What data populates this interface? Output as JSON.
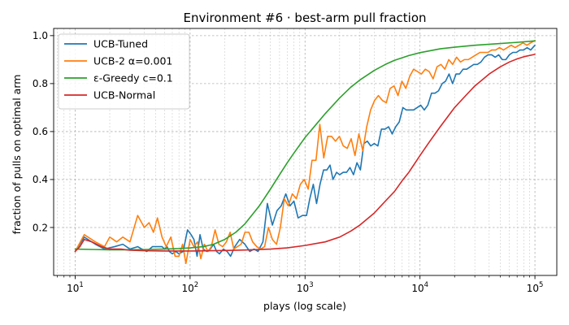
{
  "chart_data": {
    "type": "line",
    "title": "Environment #6 · best-arm pull fraction",
    "xlabel": "plays (log scale)",
    "ylabel": "fraction of pulls on optimal arm",
    "xscale": "log",
    "xlim": [
      6.5,
      155000
    ],
    "ylim": [
      0.0,
      1.03
    ],
    "x_ticks": [
      10,
      100,
      1000,
      10000,
      100000
    ],
    "x_tick_labels": [
      {
        "base": "10",
        "exp": "1"
      },
      {
        "base": "10",
        "exp": "2"
      },
      {
        "base": "10",
        "exp": "3"
      },
      {
        "base": "10",
        "exp": "4"
      },
      {
        "base": "10",
        "exp": "5"
      }
    ],
    "y_ticks": [
      0.2,
      0.4,
      0.6,
      0.8,
      1.0
    ],
    "y_tick_labels": [
      "0.2",
      "0.4",
      "0.6",
      "0.8",
      "1.0"
    ],
    "grid": true,
    "legend": "top-left",
    "series": [
      {
        "name": "UCB-Tuned",
        "color": "#1f77b4",
        "points": [
          [
            10,
            0.1
          ],
          [
            12,
            0.16
          ],
          [
            15,
            0.13
          ],
          [
            18,
            0.11
          ],
          [
            22,
            0.12
          ],
          [
            26,
            0.13
          ],
          [
            30,
            0.11
          ],
          [
            35,
            0.12
          ],
          [
            38,
            0.11
          ],
          [
            42,
            0.1
          ],
          [
            47,
            0.12
          ],
          [
            52,
            0.12
          ],
          [
            57,
            0.12
          ],
          [
            60,
            0.11
          ],
          [
            63,
            0.12
          ],
          [
            66,
            0.1
          ],
          [
            70,
            0.09
          ],
          [
            75,
            0.1
          ],
          [
            80,
            0.09
          ],
          [
            87,
            0.1
          ],
          [
            95,
            0.19
          ],
          [
            102,
            0.17
          ],
          [
            108,
            0.15
          ],
          [
            115,
            0.08
          ],
          [
            122,
            0.17
          ],
          [
            130,
            0.11
          ],
          [
            140,
            0.1
          ],
          [
            150,
            0.11
          ],
          [
            160,
            0.13
          ],
          [
            170,
            0.1
          ],
          [
            180,
            0.09
          ],
          [
            195,
            0.11
          ],
          [
            210,
            0.1
          ],
          [
            225,
            0.08
          ],
          [
            245,
            0.12
          ],
          [
            270,
            0.15
          ],
          [
            300,
            0.13
          ],
          [
            330,
            0.1
          ],
          [
            360,
            0.11
          ],
          [
            390,
            0.1
          ],
          [
            430,
            0.14
          ],
          [
            470,
            0.3
          ],
          [
            520,
            0.21
          ],
          [
            570,
            0.27
          ],
          [
            620,
            0.29
          ],
          [
            680,
            0.34
          ],
          [
            740,
            0.29
          ],
          [
            800,
            0.31
          ],
          [
            870,
            0.24
          ],
          [
            950,
            0.25
          ],
          [
            1030,
            0.25
          ],
          [
            1100,
            0.32
          ],
          [
            1180,
            0.38
          ],
          [
            1260,
            0.3
          ],
          [
            1350,
            0.38
          ],
          [
            1450,
            0.44
          ],
          [
            1550,
            0.44
          ],
          [
            1650,
            0.46
          ],
          [
            1750,
            0.4
          ],
          [
            1880,
            0.43
          ],
          [
            2000,
            0.42
          ],
          [
            2150,
            0.43
          ],
          [
            2300,
            0.43
          ],
          [
            2460,
            0.45
          ],
          [
            2640,
            0.42
          ],
          [
            2830,
            0.47
          ],
          [
            3030,
            0.44
          ],
          [
            3250,
            0.55
          ],
          [
            3480,
            0.56
          ],
          [
            3730,
            0.54
          ],
          [
            4000,
            0.55
          ],
          [
            4300,
            0.54
          ],
          [
            4620,
            0.61
          ],
          [
            4960,
            0.61
          ],
          [
            5330,
            0.62
          ],
          [
            5730,
            0.59
          ],
          [
            6150,
            0.62
          ],
          [
            6600,
            0.64
          ],
          [
            7100,
            0.7
          ],
          [
            7600,
            0.69
          ],
          [
            8200,
            0.69
          ],
          [
            8800,
            0.69
          ],
          [
            9450,
            0.7
          ],
          [
            10150,
            0.71
          ],
          [
            10900,
            0.69
          ],
          [
            11700,
            0.71
          ],
          [
            12600,
            0.76
          ],
          [
            13500,
            0.76
          ],
          [
            14500,
            0.77
          ],
          [
            15600,
            0.8
          ],
          [
            16700,
            0.81
          ],
          [
            17900,
            0.84
          ],
          [
            19200,
            0.8
          ],
          [
            20600,
            0.84
          ],
          [
            22100,
            0.84
          ],
          [
            23700,
            0.86
          ],
          [
            25500,
            0.86
          ],
          [
            27400,
            0.87
          ],
          [
            29400,
            0.88
          ],
          [
            31600,
            0.88
          ],
          [
            33900,
            0.89
          ],
          [
            36400,
            0.91
          ],
          [
            39100,
            0.92
          ],
          [
            42000,
            0.92
          ],
          [
            45100,
            0.91
          ],
          [
            48400,
            0.92
          ],
          [
            52000,
            0.9
          ],
          [
            55800,
            0.9
          ],
          [
            59900,
            0.92
          ],
          [
            64300,
            0.93
          ],
          [
            69000,
            0.93
          ],
          [
            74100,
            0.94
          ],
          [
            79600,
            0.94
          ],
          [
            85500,
            0.95
          ],
          [
            91800,
            0.94
          ],
          [
            100000,
            0.96
          ]
        ]
      },
      {
        "name": "UCB-2 α=0.001",
        "color": "#ff7f0e",
        "points": [
          [
            10,
            0.1
          ],
          [
            12,
            0.17
          ],
          [
            15,
            0.14
          ],
          [
            18,
            0.12
          ],
          [
            20,
            0.16
          ],
          [
            23,
            0.14
          ],
          [
            26,
            0.16
          ],
          [
            30,
            0.14
          ],
          [
            35,
            0.25
          ],
          [
            40,
            0.2
          ],
          [
            44,
            0.22
          ],
          [
            48,
            0.18
          ],
          [
            52,
            0.24
          ],
          [
            57,
            0.16
          ],
          [
            62,
            0.12
          ],
          [
            68,
            0.16
          ],
          [
            74,
            0.08
          ],
          [
            80,
            0.08
          ],
          [
            86,
            0.13
          ],
          [
            92,
            0.05
          ],
          [
            100,
            0.15
          ],
          [
            108,
            0.12
          ],
          [
            116,
            0.14
          ],
          [
            124,
            0.07
          ],
          [
            133,
            0.13
          ],
          [
            143,
            0.1
          ],
          [
            153,
            0.12
          ],
          [
            165,
            0.19
          ],
          [
            178,
            0.13
          ],
          [
            192,
            0.12
          ],
          [
            207,
            0.14
          ],
          [
            223,
            0.18
          ],
          [
            240,
            0.11
          ],
          [
            258,
            0.12
          ],
          [
            278,
            0.13
          ],
          [
            300,
            0.18
          ],
          [
            325,
            0.18
          ],
          [
            350,
            0.14
          ],
          [
            380,
            0.12
          ],
          [
            410,
            0.11
          ],
          [
            445,
            0.12
          ],
          [
            480,
            0.2
          ],
          [
            520,
            0.15
          ],
          [
            565,
            0.13
          ],
          [
            610,
            0.2
          ],
          [
            660,
            0.32
          ],
          [
            715,
            0.29
          ],
          [
            775,
            0.34
          ],
          [
            840,
            0.32
          ],
          [
            910,
            0.38
          ],
          [
            985,
            0.4
          ],
          [
            1065,
            0.36
          ],
          [
            1150,
            0.48
          ],
          [
            1245,
            0.48
          ],
          [
            1345,
            0.63
          ],
          [
            1455,
            0.49
          ],
          [
            1575,
            0.58
          ],
          [
            1700,
            0.58
          ],
          [
            1840,
            0.56
          ],
          [
            1990,
            0.58
          ],
          [
            2150,
            0.54
          ],
          [
            2330,
            0.53
          ],
          [
            2520,
            0.57
          ],
          [
            2720,
            0.5
          ],
          [
            2940,
            0.59
          ],
          [
            3180,
            0.52
          ],
          [
            3440,
            0.62
          ],
          [
            3720,
            0.69
          ],
          [
            4030,
            0.73
          ],
          [
            4350,
            0.75
          ],
          [
            4700,
            0.73
          ],
          [
            5090,
            0.72
          ],
          [
            5500,
            0.78
          ],
          [
            5950,
            0.79
          ],
          [
            6440,
            0.75
          ],
          [
            6960,
            0.81
          ],
          [
            7530,
            0.78
          ],
          [
            8140,
            0.83
          ],
          [
            8800,
            0.86
          ],
          [
            9520,
            0.85
          ],
          [
            10290,
            0.84
          ],
          [
            11130,
            0.86
          ],
          [
            12030,
            0.85
          ],
          [
            13010,
            0.82
          ],
          [
            14070,
            0.87
          ],
          [
            15220,
            0.88
          ],
          [
            16460,
            0.86
          ],
          [
            17800,
            0.9
          ],
          [
            19250,
            0.88
          ],
          [
            20820,
            0.91
          ],
          [
            22510,
            0.89
          ],
          [
            24340,
            0.9
          ],
          [
            26320,
            0.9
          ],
          [
            28460,
            0.91
          ],
          [
            30780,
            0.92
          ],
          [
            33280,
            0.93
          ],
          [
            35990,
            0.93
          ],
          [
            38920,
            0.93
          ],
          [
            42090,
            0.94
          ],
          [
            45520,
            0.94
          ],
          [
            49220,
            0.95
          ],
          [
            53220,
            0.94
          ],
          [
            57550,
            0.95
          ],
          [
            62240,
            0.96
          ],
          [
            67300,
            0.95
          ],
          [
            72780,
            0.96
          ],
          [
            78700,
            0.97
          ],
          [
            85100,
            0.96
          ],
          [
            92030,
            0.97
          ],
          [
            100000,
            0.98
          ]
        ]
      },
      {
        "name": "ε-Greedy c=0.1",
        "color": "#2ca02c",
        "points": [
          [
            10,
            0.11
          ],
          [
            15,
            0.108
          ],
          [
            20,
            0.107
          ],
          [
            30,
            0.107
          ],
          [
            40,
            0.108
          ],
          [
            60,
            0.11
          ],
          [
            80,
            0.112
          ],
          [
            100,
            0.115
          ],
          [
            130,
            0.12
          ],
          [
            160,
            0.13
          ],
          [
            200,
            0.15
          ],
          [
            250,
            0.18
          ],
          [
            300,
            0.215
          ],
          [
            400,
            0.29
          ],
          [
            500,
            0.36
          ],
          [
            600,
            0.42
          ],
          [
            700,
            0.47
          ],
          [
            800,
            0.51
          ],
          [
            1000,
            0.575
          ],
          [
            1250,
            0.63
          ],
          [
            1500,
            0.675
          ],
          [
            2000,
            0.74
          ],
          [
            2500,
            0.785
          ],
          [
            3000,
            0.815
          ],
          [
            4000,
            0.855
          ],
          [
            5000,
            0.88
          ],
          [
            6000,
            0.897
          ],
          [
            8000,
            0.917
          ],
          [
            10000,
            0.929
          ],
          [
            15000,
            0.945
          ],
          [
            20000,
            0.952
          ],
          [
            30000,
            0.96
          ],
          [
            50000,
            0.967
          ],
          [
            70000,
            0.972
          ],
          [
            100000,
            0.978
          ]
        ]
      },
      {
        "name": "UCB-Normal",
        "color": "#d62728",
        "points": [
          [
            10,
            0.1
          ],
          [
            11,
            0.12
          ],
          [
            12,
            0.15
          ],
          [
            14,
            0.14
          ],
          [
            17,
            0.12
          ],
          [
            20,
            0.11
          ],
          [
            25,
            0.11
          ],
          [
            30,
            0.105
          ],
          [
            40,
            0.103
          ],
          [
            60,
            0.102
          ],
          [
            100,
            0.102
          ],
          [
            150,
            0.103
          ],
          [
            200,
            0.104
          ],
          [
            300,
            0.106
          ],
          [
            500,
            0.11
          ],
          [
            700,
            0.115
          ],
          [
            1000,
            0.125
          ],
          [
            1500,
            0.14
          ],
          [
            2000,
            0.16
          ],
          [
            2500,
            0.185
          ],
          [
            3000,
            0.21
          ],
          [
            4000,
            0.26
          ],
          [
            5000,
            0.31
          ],
          [
            6000,
            0.35
          ],
          [
            7000,
            0.395
          ],
          [
            8000,
            0.43
          ],
          [
            10000,
            0.5
          ],
          [
            12000,
            0.555
          ],
          [
            15000,
            0.62
          ],
          [
            20000,
            0.7
          ],
          [
            25000,
            0.75
          ],
          [
            30000,
            0.79
          ],
          [
            40000,
            0.84
          ],
          [
            50000,
            0.87
          ],
          [
            60000,
            0.89
          ],
          [
            70000,
            0.903
          ],
          [
            80000,
            0.912
          ],
          [
            100000,
            0.922
          ]
        ]
      }
    ]
  }
}
